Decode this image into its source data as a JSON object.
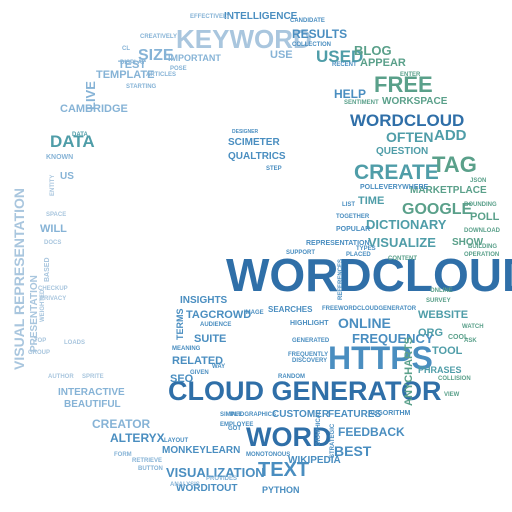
{
  "colors": {
    "dark_blue": "#2f6fa8",
    "mid_blue": "#4a8ec0",
    "light_blue": "#86b3d6",
    "pale_blue": "#a9c6de",
    "teal": "#4f9da8",
    "green": "#5aa08a",
    "light_green": "#86bb9a",
    "dark_teal": "#2e7f8f"
  },
  "words": [
    "WORDCLOUD",
    "CLOUD GENERATOR",
    "HTTPS",
    "KEYWORD",
    "WORD",
    "TEXT",
    "FREE",
    "TAG",
    "CREATE",
    "WORDCLOUD",
    "GOOGLE",
    "DATA",
    "USED",
    "RESULTS",
    "INTELLIGENCE",
    "BLOG",
    "APPEAR",
    "HELP",
    "WORKSPACE",
    "OFTEN",
    "ADD",
    "QUESTION",
    "MARKETPLACE",
    "POLL",
    "TIME",
    "DICTIONARY",
    "VISUALIZE",
    "SHOW",
    "REPRESENTATION",
    "CONTENT",
    "ONLINE",
    "FREQUENCY",
    "WEBSITE",
    "ORG",
    "TOOL",
    "PHRASES",
    "COOL",
    "ALGORITHM",
    "FEEDBACK",
    "BEST",
    "FEATURES",
    "CUSTOMER",
    "WIKIPEDIA",
    "PYTHON",
    "VISUALIZATION",
    "WORDITOUT",
    "MONKEYLEARN",
    "ALTERYX",
    "CREATOR",
    "INTERACTIVE",
    "BEAUTIFUL",
    "SEO",
    "RELATED",
    "SUITE",
    "TAGCROWD",
    "INSIGHTS",
    "SEARCHES",
    "HIGHLIGHT",
    "DATA",
    "SIZE",
    "TEST",
    "TEMPLATE",
    "CAMBRIDGE",
    "LIVE",
    "USE",
    "VISUAL REPRESENTATION",
    "PRESENTATION",
    "WILL",
    "US",
    "KNOWN",
    "SCIMETER",
    "QUALTRICS",
    "IMPORTANT",
    "EFFECTIVELY",
    "CANDIDATE",
    "EMPLOYEE",
    "INFOGRAPHICS",
    "CREATIVELY",
    "COLLECTION",
    "SENTIMENT",
    "RECENT",
    "ENTER",
    "JSON",
    "ONLINE",
    "SURVEY",
    "ANYCHARTS",
    "POLLEVERYWHERE",
    "TOGETHER",
    "LIST",
    "POPULAR",
    "STEP",
    "DESIGNER",
    "RANDOM",
    "FREEWORDCLOUDGENERATOR",
    "SIMPLE",
    "DISCOVERY",
    "FREQUENTLY",
    "AUDIENCE",
    "GENERATED",
    "MEANING",
    "GIVEN",
    "TERMS",
    "IMAGE",
    "GOT",
    "ANALYSIS",
    "PROVIDES",
    "WAY",
    "SPRITE",
    "AUTHOR",
    "LOADS",
    "TOP",
    "GROUP",
    "WEIGHTED",
    "PRIVACY",
    "BASED",
    "DOCS",
    "SPACE",
    "ENTITY",
    "DISPLAY",
    "ARTICLES",
    "STARTING",
    "POSE",
    "CL",
    "BUILDING",
    "OPERATION",
    "DOWNLOAD",
    "BOUNDING",
    "WATCH",
    "ASK",
    "COLLISION",
    "VIEW",
    "PLACED",
    "TYPES",
    "SUPPORT",
    "CHECKUP",
    "LAYOUT",
    "RETRIEVE",
    "BUTTON",
    "FORM",
    "STRATEGIC",
    "MONOTONOUS",
    "GRAPHICAL",
    "REFERENCES"
  ]
}
